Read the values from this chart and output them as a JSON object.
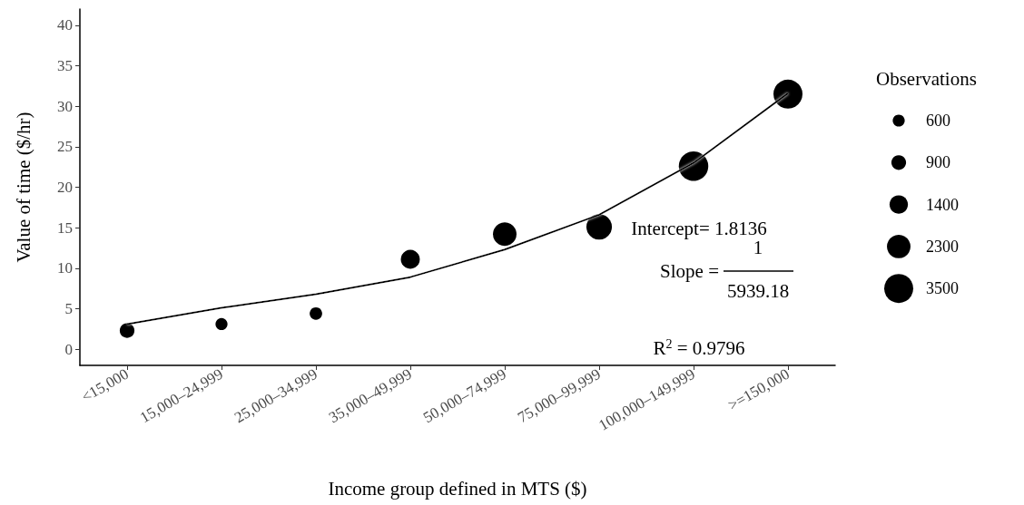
{
  "chart_data": {
    "type": "bubble",
    "xlabel": "Income group defined in MTS ($)",
    "ylabel": "Value of time ($/hr)",
    "legend_title": "Observations",
    "categories": [
      "<15,000",
      "15,000–24,999",
      "25,000–34,999",
      "35,000–49,999",
      "50,000–74,999",
      "75,000–99,999",
      "100,000–149,999",
      ">=150,000"
    ],
    "ylim": [
      -2,
      42
    ],
    "yticks": [
      0,
      5,
      10,
      15,
      20,
      25,
      30,
      35,
      40
    ],
    "series": [
      {
        "color": "#000000",
        "values": [
          2.3,
          3.1,
          4.4,
          11.1,
          14.2,
          15.1,
          22.6,
          31.5
        ],
        "sizes": [
          900,
          600,
          650,
          1500,
          2300,
          2700,
          3600,
          3500
        ]
      },
      {
        "type": "line",
        "color": "#000000",
        "values": [
          3.1,
          5.1,
          6.8,
          8.9,
          12.3,
          16.6,
          23.0,
          31.6
        ]
      }
    ],
    "size_legend": [
      600,
      900,
      1400,
      2300,
      3500
    ],
    "annotations": [
      "Intercept= 1.8136",
      "Slope =",
      "1",
      "5939.18",
      "R$^{2}$ = 0.9796"
    ],
    "grid": false,
    "line_style": "solid"
  }
}
